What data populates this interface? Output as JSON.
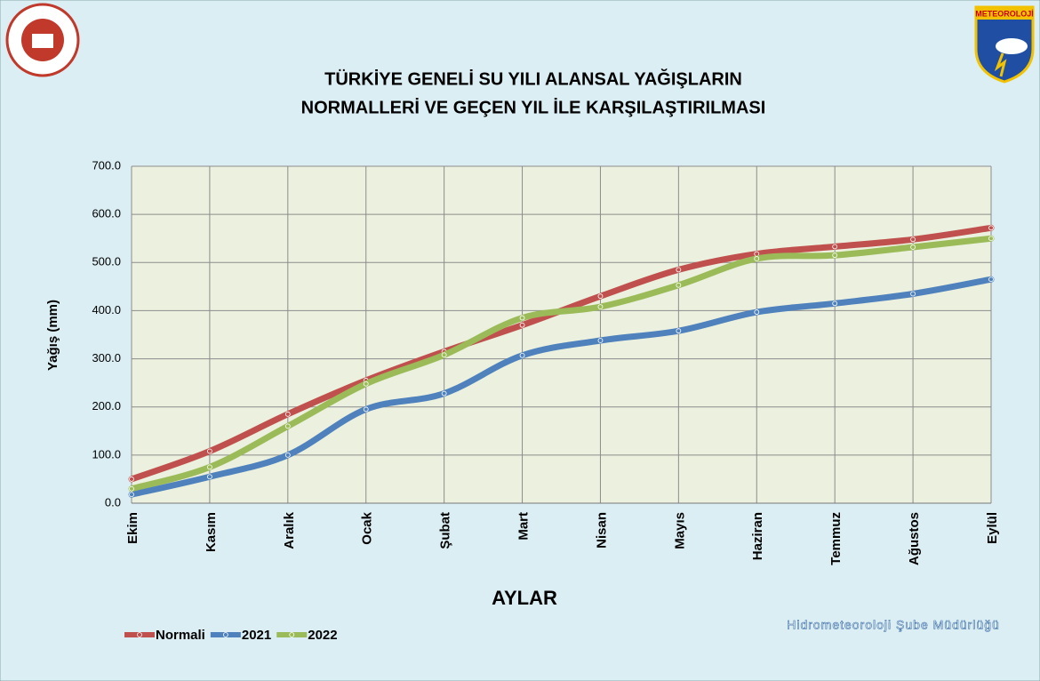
{
  "chart_data": {
    "type": "line",
    "title": "TÜRKİYE GENELİ  SU YILI ALANSAL YAĞIŞLARIN",
    "subtitle": "NORMALLERİ VE GEÇEN YIL İLE KARŞILAŞTIRILMASI",
    "y_label": "Yağış (mm)",
    "x_label": "AYLAR",
    "annotation": "Hidrometeoroloji Şube Müdürlüğü",
    "logo_text": "METEOROLOJİ",
    "categories": [
      "Ekim",
      "Kasım",
      "Aralık",
      "Ocak",
      "Şubat",
      "Mart",
      "Nisan",
      "Mayıs",
      "Haziran",
      "Temmuz",
      "Ağustos",
      "Eylül"
    ],
    "series": [
      {
        "name": "Normali",
        "color": "#c0504d",
        "values": [
          50,
          108,
          185,
          255,
          315,
          370,
          430,
          485,
          518,
          533,
          548,
          572
        ]
      },
      {
        "name": "2021",
        "color": "#4f81bd",
        "values": [
          18,
          55,
          100,
          195,
          228,
          307,
          338,
          358,
          397,
          415,
          435,
          465
        ]
      },
      {
        "name": "2022",
        "color": "#9bbb59",
        "values": [
          30,
          75,
          160,
          248,
          308,
          385,
          408,
          453,
          508,
          515,
          532,
          550
        ]
      }
    ],
    "ylim": [
      0,
      700
    ],
    "yticks": [
      {
        "value": 0,
        "label": "0.0"
      },
      {
        "value": 100,
        "label": "100.0"
      },
      {
        "value": 200,
        "label": "200.0"
      },
      {
        "value": 300,
        "label": "300.0"
      },
      {
        "value": 400,
        "label": "400.0"
      },
      {
        "value": 500,
        "label": "500.0"
      },
      {
        "value": 600,
        "label": "600.0"
      },
      {
        "value": 700,
        "label": "700.0"
      }
    ],
    "grid": true,
    "legend": "bottom-left"
  }
}
